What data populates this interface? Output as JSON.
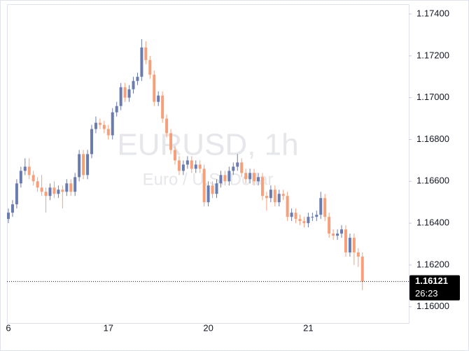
{
  "chart_data": {
    "type": "candlestick",
    "watermark": "EURUSD, 1h",
    "watermark_subtitle": "Euro / U.S. Dollar",
    "categories": [
      "6",
      null,
      null,
      null,
      null,
      null,
      null,
      null,
      null,
      null,
      null,
      null,
      null,
      null,
      null,
      null,
      null,
      null,
      null,
      null,
      null,
      null,
      null,
      null,
      "17",
      null,
      null,
      null,
      null,
      null,
      null,
      null,
      null,
      null,
      null,
      null,
      null,
      null,
      null,
      null,
      null,
      null,
      null,
      null,
      null,
      null,
      null,
      null,
      "20",
      null,
      null,
      null,
      null,
      null,
      null,
      null,
      null,
      null,
      null,
      null,
      null,
      null,
      null,
      null,
      null,
      null,
      null,
      null,
      null,
      null,
      null,
      null,
      "21",
      null,
      null,
      null,
      null,
      null,
      null,
      null,
      null,
      null,
      null,
      null,
      null,
      null
    ],
    "open": [
      1.1642,
      1.1645,
      1.1649,
      1.1659,
      1.1665,
      1.1667,
      1.1663,
      1.166,
      1.1657,
      1.1655,
      1.1653,
      1.1657,
      1.1654,
      1.1656,
      1.1655,
      1.1659,
      1.1655,
      1.1662,
      1.1673,
      1.1663,
      1.1673,
      1.1685,
      1.1688,
      1.1687,
      1.1685,
      1.1682,
      1.1693,
      1.1696,
      1.1705,
      1.17,
      1.1704,
      1.1708,
      1.171,
      1.1724,
      1.1718,
      1.1711,
      1.1698,
      1.1701,
      1.169,
      1.1683,
      1.1675,
      1.167,
      1.1665,
      1.1668,
      1.167,
      1.1666,
      1.1668,
      1.1666,
      1.165,
      1.1658,
      1.1654,
      1.1659,
      1.1663,
      1.166,
      1.1665,
      1.1667,
      1.1669,
      1.1664,
      1.1661,
      1.1664,
      1.166,
      1.1662,
      1.1653,
      1.1652,
      1.1656,
      1.165,
      1.1654,
      1.1653,
      1.1643,
      1.1645,
      1.1642,
      1.1641,
      1.164,
      1.1643,
      1.1643,
      1.1644,
      1.1652,
      1.1643,
      1.1635,
      1.1634,
      1.1635,
      1.1637,
      1.1626,
      1.1633,
      1.1626,
      1.1624
    ],
    "high": [
      1.1647,
      1.1651,
      1.1661,
      1.1667,
      1.1671,
      1.1671,
      1.1665,
      1.1662,
      1.1663,
      1.1657,
      1.1659,
      1.166,
      1.1658,
      1.1658,
      1.1661,
      1.1661,
      1.1664,
      1.1675,
      1.1675,
      1.1675,
      1.1687,
      1.1691,
      1.169,
      1.1689,
      1.1687,
      1.1695,
      1.1698,
      1.1707,
      1.1707,
      1.1706,
      1.171,
      1.1712,
      1.1728,
      1.1727,
      1.172,
      1.1713,
      1.1703,
      1.1703,
      1.1692,
      1.1685,
      1.1677,
      1.1672,
      1.167,
      1.1672,
      1.1672,
      1.167,
      1.167,
      1.1668,
      1.166,
      1.166,
      1.1661,
      1.1665,
      1.1665,
      1.1667,
      1.1669,
      1.1673,
      1.1671,
      1.1666,
      1.1666,
      1.1666,
      1.1664,
      1.1664,
      1.1655,
      1.1658,
      1.1658,
      1.1656,
      1.1656,
      1.1655,
      1.1647,
      1.1647,
      1.1644,
      1.1643,
      1.1645,
      1.1645,
      1.1646,
      1.1655,
      1.1654,
      1.1645,
      1.1637,
      1.1637,
      1.1639,
      1.1639,
      1.1635,
      1.1635,
      1.1628,
      1.1626
    ],
    "low": [
      1.164,
      1.1643,
      1.1647,
      1.1657,
      1.1663,
      1.1661,
      1.1658,
      1.1655,
      1.1653,
      1.1645,
      1.1651,
      1.1652,
      1.1652,
      1.1647,
      1.1653,
      1.1653,
      1.1653,
      1.166,
      1.1661,
      1.1661,
      1.1671,
      1.1683,
      1.1685,
      1.1683,
      1.168,
      1.168,
      1.1691,
      1.1694,
      1.1698,
      1.1698,
      1.1702,
      1.1706,
      1.1708,
      1.1716,
      1.1709,
      1.1696,
      1.1696,
      1.1688,
      1.1681,
      1.1673,
      1.1668,
      1.1663,
      1.1663,
      1.1666,
      1.1664,
      1.1664,
      1.1664,
      1.1648,
      1.1648,
      1.1652,
      1.1652,
      1.1657,
      1.1658,
      1.1658,
      1.1663,
      1.1665,
      1.1662,
      1.1659,
      1.1659,
      1.1658,
      1.1658,
      1.1651,
      1.1646,
      1.165,
      1.1648,
      1.1648,
      1.1651,
      1.1641,
      1.1641,
      1.164,
      1.1639,
      1.1638,
      1.1638,
      1.1641,
      1.1641,
      1.1642,
      1.1641,
      1.1633,
      1.1632,
      1.1632,
      1.1633,
      1.1624,
      1.1624,
      1.162,
      1.1619,
      1.1608
    ],
    "close": [
      1.1645,
      1.1649,
      1.1659,
      1.1665,
      1.1667,
      1.1663,
      1.166,
      1.1657,
      1.1655,
      1.1653,
      1.1657,
      1.1654,
      1.1656,
      1.1655,
      1.1659,
      1.1655,
      1.1662,
      1.1673,
      1.1663,
      1.1673,
      1.1685,
      1.1688,
      1.1687,
      1.1685,
      1.1682,
      1.1693,
      1.1696,
      1.1705,
      1.17,
      1.1704,
      1.1708,
      1.171,
      1.1724,
      1.1718,
      1.1711,
      1.1698,
      1.1701,
      1.169,
      1.1683,
      1.1675,
      1.167,
      1.1665,
      1.1668,
      1.167,
      1.1666,
      1.1668,
      1.1666,
      1.165,
      1.1658,
      1.1654,
      1.1659,
      1.1663,
      1.166,
      1.1665,
      1.1667,
      1.1669,
      1.1664,
      1.1661,
      1.1664,
      1.166,
      1.1662,
      1.1653,
      1.1652,
      1.1656,
      1.165,
      1.1654,
      1.1653,
      1.1643,
      1.1645,
      1.1642,
      1.1641,
      1.164,
      1.1643,
      1.1643,
      1.1644,
      1.1652,
      1.1643,
      1.1635,
      1.1634,
      1.1635,
      1.1637,
      1.1626,
      1.1633,
      1.1626,
      1.1624,
      1.16121
    ],
    "up_color": "#6a7bb0",
    "down_color": "#f5a07b",
    "ylim": [
      1.15929,
      1.17467
    ],
    "yticks": [
      {
        "value": 1.16,
        "label": "1.16000"
      },
      {
        "value": 1.162,
        "label": "1.16200"
      },
      {
        "value": 1.164,
        "label": "1.16400"
      },
      {
        "value": 1.166,
        "label": "1.16600"
      },
      {
        "value": 1.168,
        "label": "1.16800"
      },
      {
        "value": 1.17,
        "label": "1.17000"
      },
      {
        "value": 1.172,
        "label": "1.17200"
      },
      {
        "value": 1.174,
        "label": "1.17400"
      }
    ],
    "last_price": {
      "value": 1.16121,
      "label": "1.16121"
    },
    "countdown": "26:23"
  }
}
